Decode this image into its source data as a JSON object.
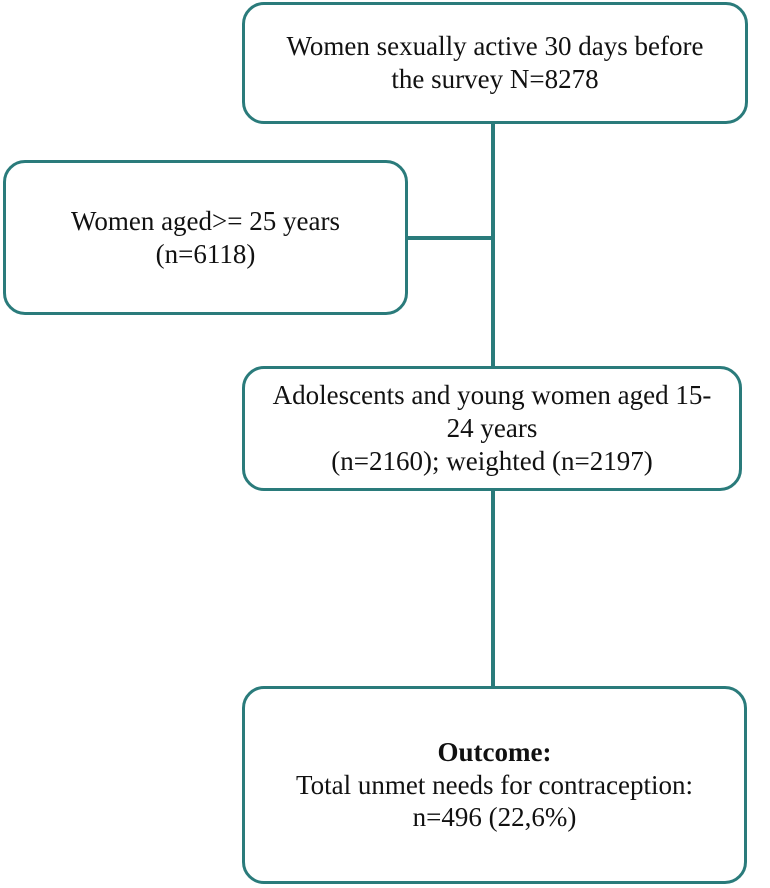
{
  "boxes": {
    "top": {
      "line1": "Women sexually active 30 days before",
      "line2": "the survey N=8278"
    },
    "left": {
      "line1": "Women aged>= 25 years",
      "line2": "(n=6118)"
    },
    "middle": {
      "line1": "Adolescents and young women aged 15-",
      "line2": "24 years",
      "line3": "(n=2160); weighted (n=2197)"
    },
    "bottom": {
      "title": "Outcome:",
      "line1": "Total unmet needs for contraception:",
      "line2": "n=496 (22,6%)"
    }
  },
  "colors": {
    "border": "#2a7b7b",
    "connector": "#2a7b7b"
  }
}
